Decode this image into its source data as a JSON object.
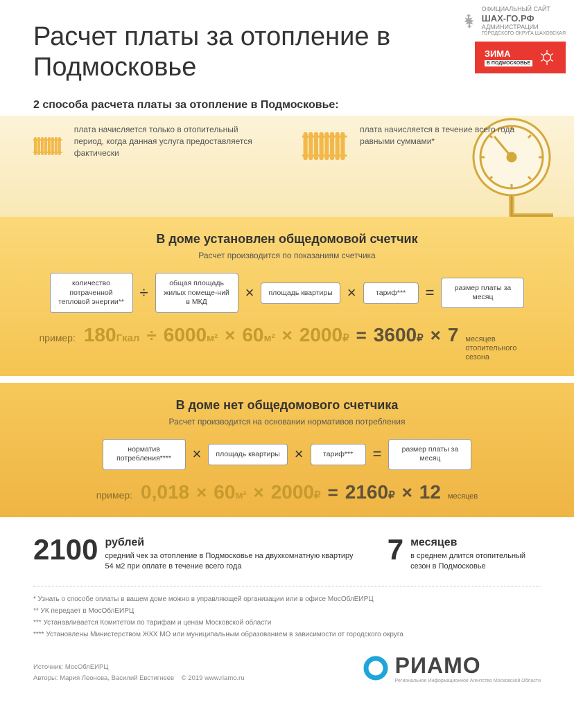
{
  "colors": {
    "accent": "#e8382f",
    "gold_light": "#fcf3d8",
    "gold_mid": "#f9e4a8",
    "gold_dark1": "#fbd879",
    "gold_dark2": "#f5c451",
    "radiator": "#f2b84a",
    "text_gold": "#c79a2e",
    "text_dark_gold": "#5f5238",
    "riamo_blue": "#1fa6d8"
  },
  "site_badge": {
    "line1": "ОФИЦИАЛЬНЫЙ САЙТ",
    "line2": "АДМИНИСТРАЦИИ",
    "line3": "ГОРОДСКОГО ОКРУГА ШАХОВСКАЯ",
    "domain": "ШАХ-ГО.РФ"
  },
  "zima": {
    "title": "ЗИМА",
    "sub": "В ПОДМОСКОВЬЕ"
  },
  "title": "Расчет платы за отопление в Подмосковье",
  "subtitle": "2 способа расчета платы за отопление в Подмосковье:",
  "method1": "плата начисляется только в отопительный период, когда данная услуга предоставляется фактически",
  "method2": "плата начисляется в течение всего года равными суммами*",
  "section1": {
    "title": "В доме установлен общедомовой счетчик",
    "sub": "Расчет производится по показаниям счетчика",
    "boxes": [
      "количество потраченной тепловой энергии**",
      "общая площадь жилых помеще-ний в МКД",
      "площадь квартиры",
      "тариф***",
      "размер платы за месяц"
    ],
    "ops": [
      "÷",
      "×",
      "×",
      "="
    ],
    "example_label": "пример:",
    "example": [
      {
        "v": "180",
        "u": "Гкал"
      },
      {
        "op": "÷"
      },
      {
        "v": "6000",
        "u": "м²"
      },
      {
        "op": "×"
      },
      {
        "v": "60",
        "u": "м²"
      },
      {
        "op": "×"
      },
      {
        "v": "2000",
        "u": "₽"
      },
      {
        "op": "=",
        "dark": true
      },
      {
        "v": "3600",
        "u": "₽",
        "dark": true
      },
      {
        "op": "×",
        "dark": true
      },
      {
        "v": "7",
        "dark": true
      },
      {
        "note": "месяцев отопительного сезона"
      }
    ]
  },
  "section2": {
    "title": "В доме нет общедомового счетчика",
    "sub": "Расчет производится на основании нормативов потребления",
    "boxes": [
      "норматив потребления****",
      "площадь квартиры",
      "тариф***",
      "размер платы за месяц"
    ],
    "ops": [
      "×",
      "×",
      "="
    ],
    "example_label": "пример:",
    "example": [
      {
        "v": "0,018"
      },
      {
        "op": "×"
      },
      {
        "v": "60",
        "u": "м²"
      },
      {
        "op": "×"
      },
      {
        "v": "2000",
        "u": "₽"
      },
      {
        "op": "=",
        "dark": true
      },
      {
        "v": "2160",
        "u": "₽",
        "dark": true
      },
      {
        "op": "×",
        "dark": true
      },
      {
        "v": "12",
        "dark": true
      },
      {
        "note": "месяцев"
      }
    ]
  },
  "stat1": {
    "num": "2100",
    "hl": "рублей",
    "txt": "средний чек за отопление в Подмосковье на двухкомнатную квартиру 54 м2 при оплате в течение всего года"
  },
  "stat2": {
    "num": "7",
    "hl": "месяцев",
    "txt": "в среднем длится отопительный сезон в Подмосковье"
  },
  "footnotes": [
    "* Узнать о способе оплаты в вашем доме можно в управляющей организации или в офисе МосОблЕИРЦ",
    "** УК передает в МосОблЕИРЦ",
    "*** Устанавливается Комитетом по тарифам и ценам Московской области",
    "**** Установлены Министерством ЖКХ МО или муниципальным образованием в зависимости от городского округа"
  ],
  "footer": {
    "source": "Источник: МосОблЕИРЦ",
    "authors": "Авторы: Мария Леонова, Василий Евстигнеев",
    "copyright": "© 2019   www.riamo.ru",
    "logo": "РИАМО",
    "logo_sub": "Региональное Информационное Агентство Московской Области"
  }
}
